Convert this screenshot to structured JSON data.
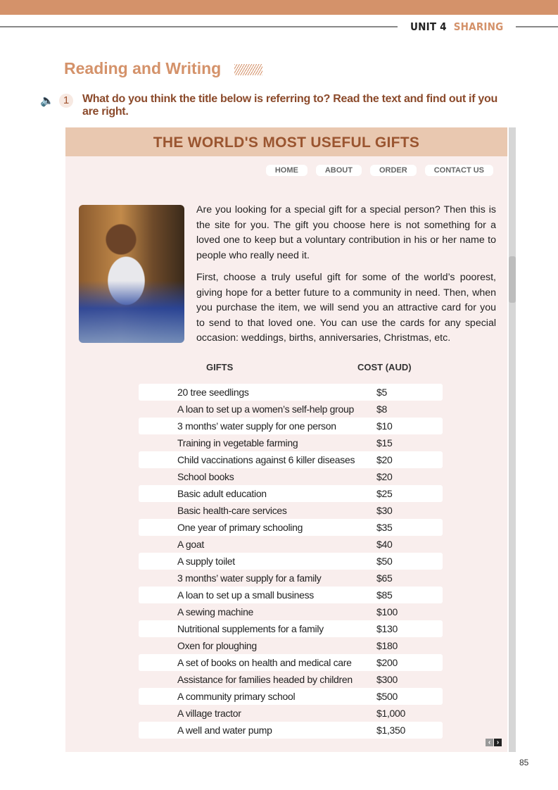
{
  "header": {
    "unit": "UNIT 4",
    "topic": "SHARING"
  },
  "section_title": "Reading and Writing",
  "exercise": {
    "number": "1",
    "question": "What do you think the title below is referring to? Read the text and find out if you are right.",
    "audio_icon": "speaker-icon"
  },
  "website": {
    "title": "THE WORLD'S MOST USEFUL GIFTS",
    "nav": [
      "HOME",
      "ABOUT",
      "ORDER",
      "CONTACT US"
    ],
    "paragraphs": [
      "Are you looking for a special gift for a special person? Then this is the site for you. The gift you choose here is not something for a loved one to keep but a voluntary contribution in his or her name to people who really need it.",
      "First, choose a truly useful gift for some of the world’s poorest, giving hope for a better future to a community in need. Then, when you purchase the item, we will send you an attractive card for you to send to that loved one. You can use the cards for any special occasion: weddings, births, anniversaries, Christmas, etc."
    ],
    "table": {
      "headers": [
        "GIFTS",
        "COST (AUD)"
      ],
      "rows": [
        [
          "20 tree seedlings",
          "$5"
        ],
        [
          "A loan to set up a women’s self-help group",
          "$8"
        ],
        [
          "3 months’ water supply for one person",
          "$10"
        ],
        [
          "Training in vegetable farming",
          "$15"
        ],
        [
          "Child vaccinations against 6 killer diseases",
          "$20"
        ],
        [
          "School books",
          "$20"
        ],
        [
          "Basic adult education",
          "$25"
        ],
        [
          "Basic health-care services",
          "$30"
        ],
        [
          "One year of primary schooling",
          "$35"
        ],
        [
          "A goat",
          "$40"
        ],
        [
          "A supply toilet",
          "$50"
        ],
        [
          "3 months’ water supply for a family",
          "$65"
        ],
        [
          "A loan to set up a small business",
          "$85"
        ],
        [
          "A sewing machine",
          "$100"
        ],
        [
          "Nutritional supplements for a family",
          "$130"
        ],
        [
          "Oxen for ploughing",
          "$180"
        ],
        [
          "A set of books on health and medical care",
          "$200"
        ],
        [
          "Assistance for families headed by children",
          "$300"
        ],
        [
          "A community primary school",
          "$500"
        ],
        [
          "A village tractor",
          "$1,000"
        ],
        [
          "A well and water pump",
          "$1,350"
        ]
      ]
    },
    "pager": {
      "prev": "‹",
      "next": "›"
    }
  },
  "page_number": "85",
  "colors": {
    "accent": "#d4926a",
    "title_bar": "#e9c8b0",
    "title_text": "#9a5530",
    "page_bg": "#f9eeed"
  }
}
